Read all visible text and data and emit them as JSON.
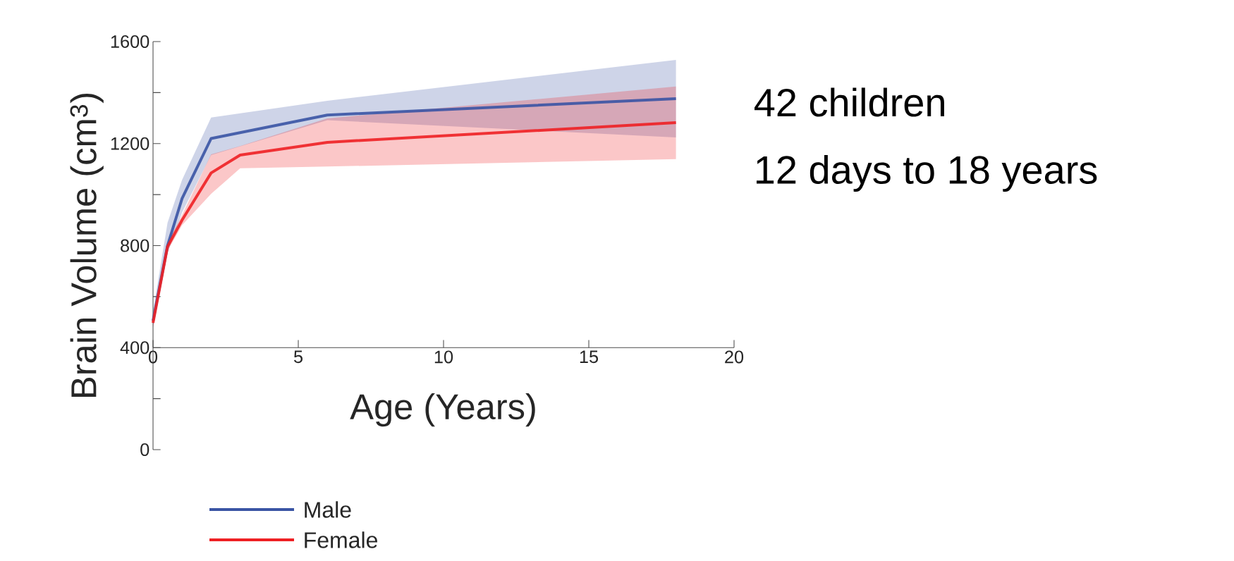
{
  "chart_data": {
    "type": "line",
    "xlabel": "Age (Years)",
    "ylabel": "Brain Volume (cm$^{3}$)",
    "xlim": [
      0,
      20
    ],
    "xticks": [
      0,
      5,
      10,
      15,
      20
    ],
    "ylim": [
      0,
      1600
    ],
    "yticks": [
      0,
      {
        "value": 200,
        "label": null
      },
      400,
      {
        "value": 600,
        "label": null
      },
      800,
      {
        "value": 1000,
        "label": null
      },
      1200,
      {
        "value": 1400,
        "label": null
      },
      1600
    ],
    "legend": "bottom",
    "annotations": [
      "42 children",
      "12 days to 18 years"
    ],
    "series": [
      {
        "name": "Male",
        "color": "#3a54a4",
        "x": [
          0,
          0.5,
          1,
          2,
          6,
          18
        ],
        "values": [
          505,
          800,
          985,
          1220,
          1312,
          1376
        ],
        "lower": [
          480,
          770,
          930,
          1155,
          1292,
          1224
        ],
        "upper": [
          540,
          890,
          1058,
          1302,
          1368,
          1528
        ]
      },
      {
        "name": "Female",
        "color": "#ee2024",
        "x": [
          0,
          0.5,
          1,
          2,
          3,
          6,
          18
        ],
        "values": [
          497,
          796,
          900,
          1085,
          1155,
          1205,
          1282
        ],
        "lower": [
          480,
          780,
          880,
          1003,
          1103,
          1110,
          1139
        ],
        "upper": [
          520,
          810,
          920,
          1158,
          1190,
          1299,
          1424
        ]
      }
    ]
  }
}
